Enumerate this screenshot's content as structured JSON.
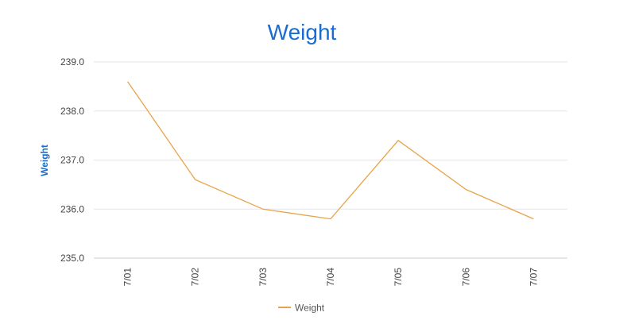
{
  "chart_data": {
    "type": "line",
    "title": "Weight",
    "xlabel": "",
    "ylabel": "Weight",
    "categories": [
      "7/01",
      "7/02",
      "7/03",
      "7/04",
      "7/05",
      "7/06",
      "7/07"
    ],
    "series": [
      {
        "name": "Weight",
        "values": [
          238.6,
          236.6,
          236.0,
          235.8,
          237.4,
          236.4,
          235.8
        ]
      }
    ],
    "ylim": [
      235.0,
      239.0
    ],
    "yticks": [
      "235.0",
      "236.0",
      "237.0",
      "238.0",
      "239.0"
    ],
    "grid": true,
    "legend_position": "bottom",
    "colors": {
      "title": "#1a6ccf",
      "ylabel": "#1a6ccf",
      "series": "#e8a44a",
      "grid": "#e6e6e6",
      "axis": "#cccccc",
      "tick_label": "#444444",
      "legend_text": "#555555"
    }
  }
}
